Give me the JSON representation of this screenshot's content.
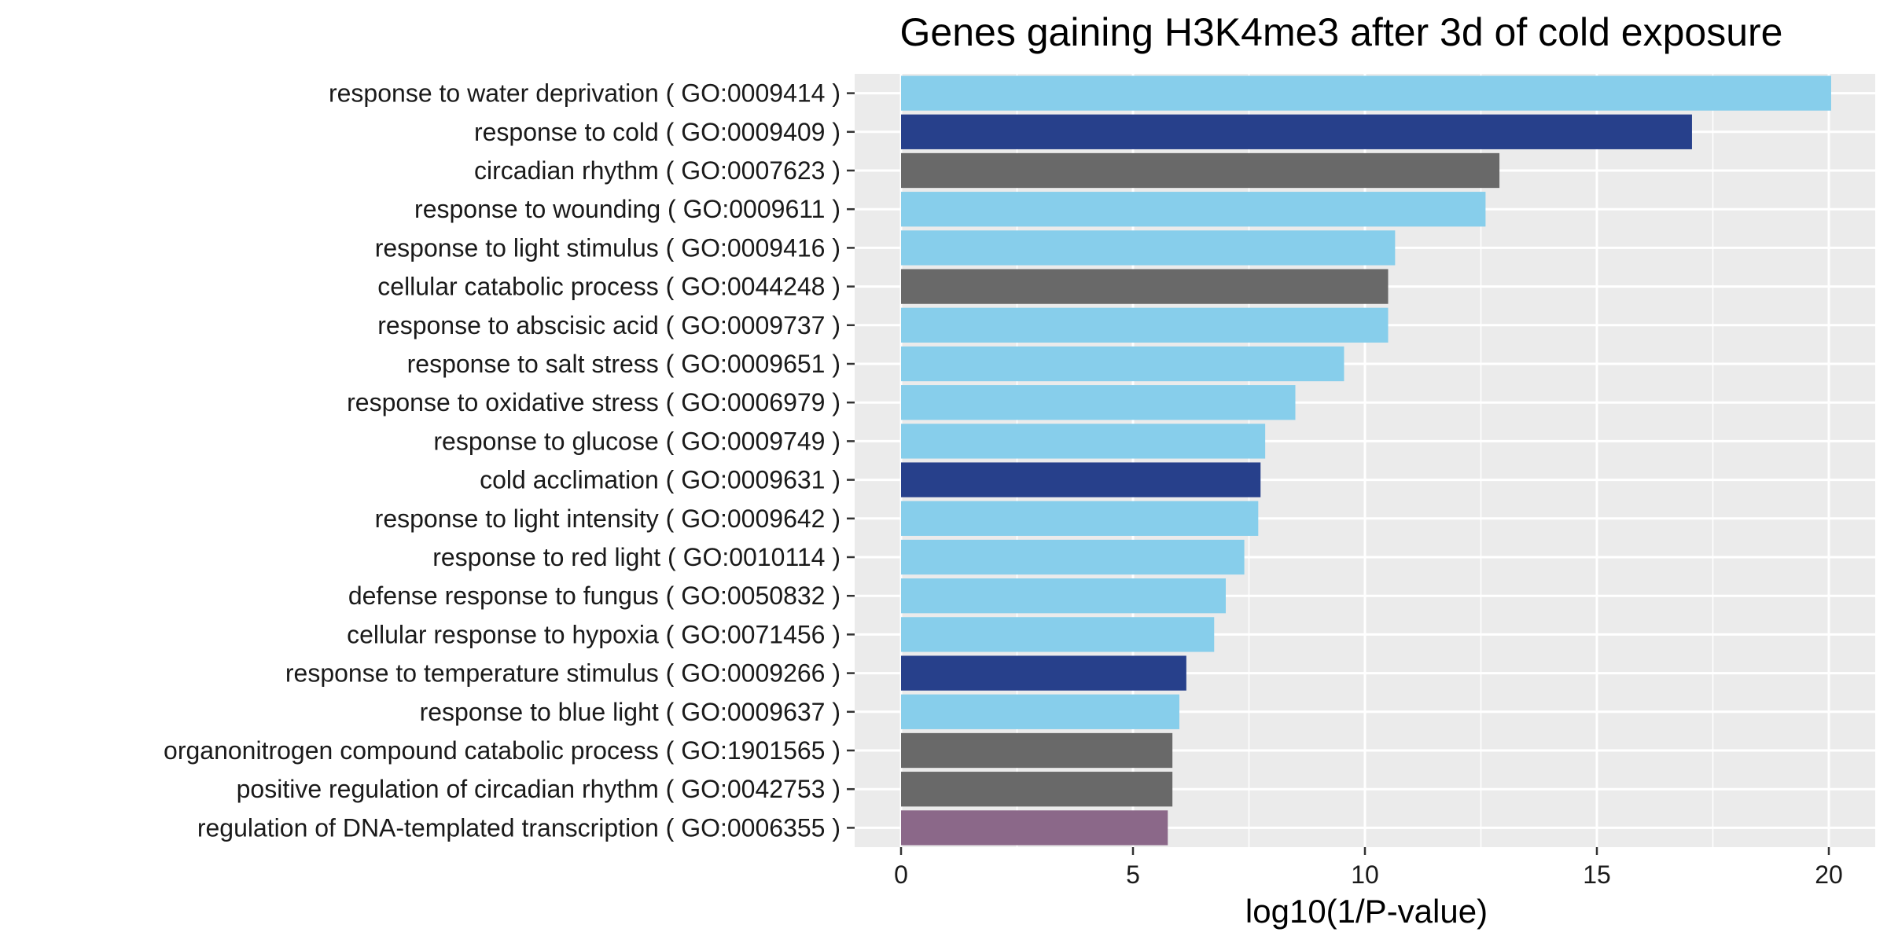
{
  "chart_data": {
    "type": "bar",
    "orientation": "horizontal",
    "title": "Genes gaining H3K4me3 after 3d of cold exposure",
    "xlabel": "log10(1/P-value)",
    "ylabel": "",
    "xlim": [
      -1,
      21
    ],
    "x_ticks": [
      0,
      5,
      10,
      15,
      20
    ],
    "grid": true,
    "panel_background": "#EBEBEB",
    "grid_color": "#FFFFFF",
    "categories": [
      "response to water deprivation ( GO:0009414 )",
      "response to cold ( GO:0009409 )",
      "circadian rhythm ( GO:0007623 )",
      "response to wounding ( GO:0009611 )",
      "response to light stimulus ( GO:0009416 )",
      "cellular catabolic process ( GO:0044248 )",
      "response to abscisic acid ( GO:0009737 )",
      "response to salt stress ( GO:0009651 )",
      "response to oxidative stress ( GO:0006979 )",
      "response to glucose ( GO:0009749 )",
      "cold acclimation ( GO:0009631 )",
      "response to light intensity ( GO:0009642 )",
      "response to red light ( GO:0010114 )",
      "defense response to fungus ( GO:0050832 )",
      "cellular response to hypoxia ( GO:0071456 )",
      "response to temperature stimulus ( GO:0009266 )",
      "response to blue light ( GO:0009637 )",
      "organonitrogen compound catabolic process ( GO:1901565 )",
      "positive regulation of circadian rhythm ( GO:0042753 )",
      "regulation of DNA-templated transcription ( GO:0006355 )"
    ],
    "values": [
      20.05,
      17.05,
      12.9,
      12.6,
      10.65,
      10.5,
      10.5,
      9.55,
      8.5,
      7.85,
      7.75,
      7.7,
      7.4,
      7.0,
      6.75,
      6.15,
      6.0,
      5.85,
      5.85,
      5.75
    ],
    "bar_colors": [
      "#87CEEB",
      "#27408B",
      "#696969",
      "#87CEEB",
      "#87CEEB",
      "#696969",
      "#87CEEB",
      "#87CEEB",
      "#87CEEB",
      "#87CEEB",
      "#27408B",
      "#87CEEB",
      "#87CEEB",
      "#87CEEB",
      "#87CEEB",
      "#27408B",
      "#87CEEB",
      "#696969",
      "#696969",
      "#8B6889"
    ]
  }
}
